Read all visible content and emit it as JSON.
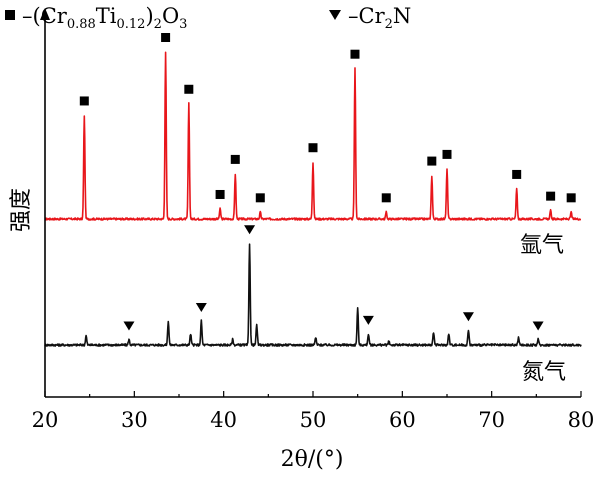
{
  "chart_data": {
    "type": "line",
    "xlabel": "2θ/(°)",
    "ylabel": "强度",
    "xlim": [
      20,
      80
    ],
    "xticks": [
      20,
      30,
      40,
      50,
      60,
      70,
      80
    ],
    "xtick_labels": [
      "20",
      "30",
      "40",
      "50",
      "60",
      "70",
      "80"
    ],
    "yticks_shown": false,
    "legend": {
      "placement": "top",
      "entries": [
        {
          "marker": "square",
          "label": "–(Cr0.88Ti0.12)2O3",
          "phase": "(Cr0.88Ti0.12)2O3"
        },
        {
          "marker": "triangle-down",
          "label": "–Cr2N",
          "phase": "Cr2N"
        }
      ]
    },
    "series": [
      {
        "name": "氩气",
        "label": "氩气",
        "color": "#e8161b",
        "baseline": 0.0,
        "peaks": [
          {
            "x": 24.4,
            "height": 0.62
          },
          {
            "x": 33.5,
            "height": 1.0
          },
          {
            "x": 36.1,
            "height": 0.69
          },
          {
            "x": 39.6,
            "height": 0.06
          },
          {
            "x": 41.3,
            "height": 0.27
          },
          {
            "x": 44.1,
            "height": 0.04
          },
          {
            "x": 50.0,
            "height": 0.34
          },
          {
            "x": 54.7,
            "height": 0.9
          },
          {
            "x": 58.2,
            "height": 0.04
          },
          {
            "x": 63.3,
            "height": 0.26
          },
          {
            "x": 65.0,
            "height": 0.3
          },
          {
            "x": 72.8,
            "height": 0.18
          },
          {
            "x": 76.6,
            "height": 0.05
          },
          {
            "x": 78.9,
            "height": 0.04
          }
        ],
        "phase_markers": [
          {
            "x": 24.4,
            "phase": "(Cr0.88Ti0.12)2O3"
          },
          {
            "x": 33.5,
            "phase": "(Cr0.88Ti0.12)2O3"
          },
          {
            "x": 36.1,
            "phase": "(Cr0.88Ti0.12)2O3"
          },
          {
            "x": 39.6,
            "phase": "(Cr0.88Ti0.12)2O3"
          },
          {
            "x": 41.3,
            "phase": "(Cr0.88Ti0.12)2O3"
          },
          {
            "x": 44.1,
            "phase": "(Cr0.88Ti0.12)2O3"
          },
          {
            "x": 50.0,
            "phase": "(Cr0.88Ti0.12)2O3"
          },
          {
            "x": 54.7,
            "phase": "(Cr0.88Ti0.12)2O3"
          },
          {
            "x": 58.2,
            "phase": "(Cr0.88Ti0.12)2O3"
          },
          {
            "x": 63.3,
            "phase": "(Cr0.88Ti0.12)2O3"
          },
          {
            "x": 65.0,
            "phase": "(Cr0.88Ti0.12)2O3"
          },
          {
            "x": 72.8,
            "phase": "(Cr0.88Ti0.12)2O3"
          },
          {
            "x": 76.6,
            "phase": "(Cr0.88Ti0.12)2O3"
          },
          {
            "x": 78.9,
            "phase": "(Cr0.88Ti0.12)2O3"
          }
        ]
      },
      {
        "name": "氮气",
        "label": "氮气",
        "color": "#111111",
        "baseline": 0.0,
        "peaks": [
          {
            "x": 24.6,
            "height": 0.05
          },
          {
            "x": 29.4,
            "height": 0.03
          },
          {
            "x": 33.8,
            "height": 0.13
          },
          {
            "x": 36.3,
            "height": 0.06
          },
          {
            "x": 37.5,
            "height": 0.13
          },
          {
            "x": 41.0,
            "height": 0.03
          },
          {
            "x": 42.9,
            "height": 0.55
          },
          {
            "x": 43.7,
            "height": 0.11
          },
          {
            "x": 50.3,
            "height": 0.04
          },
          {
            "x": 55.0,
            "height": 0.2
          },
          {
            "x": 56.2,
            "height": 0.06
          },
          {
            "x": 58.5,
            "height": 0.02
          },
          {
            "x": 63.5,
            "height": 0.07
          },
          {
            "x": 65.2,
            "height": 0.06
          },
          {
            "x": 67.4,
            "height": 0.08
          },
          {
            "x": 73.0,
            "height": 0.04
          },
          {
            "x": 75.2,
            "height": 0.03
          }
        ],
        "phase_markers": [
          {
            "x": 29.4,
            "phase": "Cr2N"
          },
          {
            "x": 37.5,
            "phase": "Cr2N"
          },
          {
            "x": 42.9,
            "phase": "Cr2N"
          },
          {
            "x": 56.2,
            "phase": "Cr2N"
          },
          {
            "x": 67.4,
            "phase": "Cr2N"
          },
          {
            "x": 75.2,
            "phase": "Cr2N"
          }
        ]
      }
    ]
  }
}
